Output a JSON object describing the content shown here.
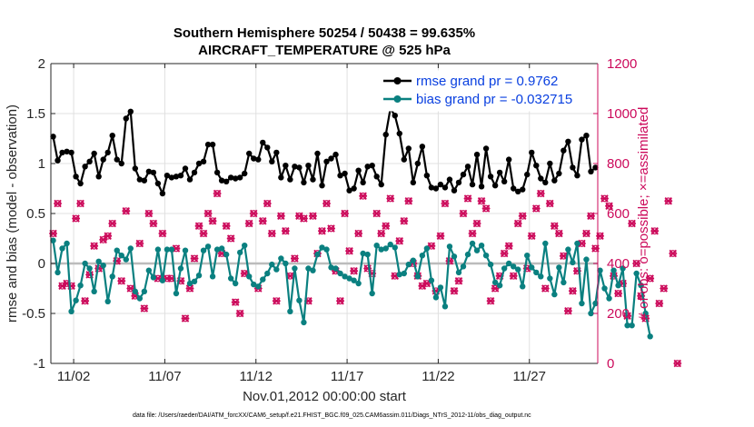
{
  "chart_data": {
    "type": "line",
    "title": "Southern Hemisphere 50254 / 50438 = 99.635%",
    "subtitle": "AIRCRAFT_TEMPERATURE @ 525 hPa",
    "xlabel": "Nov.01,2012 00:00:00 start",
    "ylabel": "rmse and bias (model - observation)",
    "ylabel_right": "# of obs: o=possible; ×=assimilated",
    "footnote": "data file: /Users/raeder/DAI/ATM_forcXX/CAM6_setup/f.e21.FHIST_BGC.f09_025.CAM6assim.011/Diags_NTrS_2012-11/obs_diag_output.nc",
    "xlim": [
      0.5,
      30.5
    ],
    "ylim": [
      -1,
      2
    ],
    "ylim_right": [
      0,
      1200
    ],
    "x_ticks": [
      1.75,
      6.75,
      11.75,
      16.75,
      21.75,
      26.75
    ],
    "x_tick_labels": [
      "11/02",
      "11/07",
      "11/12",
      "11/17",
      "11/22",
      "11/27"
    ],
    "y_ticks": [
      "-1",
      "-0.5",
      "0",
      "0.5",
      "1",
      "1.5",
      "2"
    ],
    "y_ticks_right": [
      "0",
      "200",
      "400",
      "600",
      "800",
      "1000",
      "1200"
    ],
    "grid": true,
    "legend_position": "top-right",
    "series": [
      {
        "name": "rmse grand pr = 0.9762",
        "color": "#000000",
        "marker": "filled-circle",
        "axis": "left",
        "x_start": 0.625,
        "x_step": 0.25,
        "values": [
          1.27,
          1.03,
          1.11,
          1.12,
          1.11,
          0.87,
          0.8,
          0.97,
          1.02,
          1.1,
          0.87,
          1.04,
          1.11,
          1.28,
          1.04,
          1.0,
          1.45,
          1.52,
          0.95,
          0.84,
          0.83,
          0.92,
          0.91,
          0.8,
          0.7,
          0.88,
          0.86,
          0.87,
          0.88,
          0.95,
          0.84,
          0.91,
          1.0,
          1.02,
          1.19,
          1.19,
          0.91,
          0.83,
          0.82,
          0.86,
          0.85,
          0.86,
          0.9,
          1.1,
          1.05,
          1.04,
          1.21,
          1.16,
          1.02,
          1.11,
          0.86,
          0.98,
          0.84,
          0.97,
          0.96,
          0.81,
          0.98,
          0.84,
          1.1,
          0.78,
          1.02,
          1.05,
          1.09,
          0.88,
          0.9,
          0.73,
          0.75,
          0.93,
          0.81,
          0.97,
          0.98,
          0.87,
          0.79,
          1.29,
          1.55,
          1.48,
          1.3,
          1.04,
          1.15,
          0.81,
          1.0,
          1.17,
          0.88,
          0.76,
          0.75,
          0.79,
          0.76,
          0.84,
          0.73,
          0.81,
          0.89,
          0.97,
          0.79,
          1.09,
          0.77,
          1.15,
          0.87,
          0.78,
          0.91,
          0.82,
          1.04,
          0.75,
          0.72,
          0.74,
          0.89,
          1.11,
          0.98,
          0.85,
          0.81,
          1.0,
          0.83,
          0.9,
          1.13,
          1.22,
          0.96,
          0.88,
          1.24,
          1.28,
          0.92,
          0.96
        ]
      },
      {
        "name": "bias grand pr = -0.032715",
        "color": "#0a8080",
        "marker": "filled-circle",
        "axis": "left",
        "x_start": 0.625,
        "x_step": 0.25,
        "values": [
          0.23,
          -0.09,
          0.15,
          0.2,
          -0.48,
          -0.37,
          -0.22,
          0.0,
          -0.05,
          -0.28,
          0.02,
          -0.02,
          -0.38,
          -0.13,
          0.13,
          0.08,
          0.04,
          0.15,
          -0.28,
          -0.35,
          -0.28,
          -0.07,
          -0.14,
          0.14,
          -0.17,
          0.14,
          0.14,
          -0.3,
          -0.05,
          0.13,
          -0.2,
          -0.18,
          -0.12,
          0.13,
          0.17,
          -0.13,
          0.14,
          0.15,
          0.09,
          -0.15,
          -0.2,
          0.11,
          0.18,
          -0.13,
          -0.21,
          -0.23,
          -0.16,
          -0.1,
          -0.01,
          -0.06,
          0.05,
          0.0,
          -0.48,
          -0.05,
          -0.37,
          -0.59,
          -0.05,
          -0.07,
          0.09,
          0.16,
          0.14,
          -0.04,
          -0.05,
          -0.1,
          -0.13,
          -0.15,
          -0.17,
          -0.2,
          0.1,
          0.09,
          -0.3,
          0.18,
          0.14,
          0.15,
          0.19,
          0.16,
          -0.11,
          -0.1,
          -0.01,
          0.03,
          -0.13,
          0.08,
          0.15,
          -0.17,
          -0.34,
          -0.24,
          -0.43,
          0.17,
          0.07,
          -0.09,
          -0.03,
          0.09,
          0.2,
          0.13,
          0.18,
          0.08,
          -0.01,
          -0.19,
          -0.22,
          -0.05,
          0.0,
          -0.03,
          -0.06,
          -0.23,
          0.08,
          -0.04,
          -0.09,
          -0.13,
          0.2,
          -0.15,
          -0.31,
          -0.04,
          -0.19,
          0.14,
          0.01,
          0.2,
          -0.4,
          0.04,
          -0.5,
          -0.4,
          -0.07,
          -0.25,
          -0.35,
          -0.07,
          -0.22,
          -0.05,
          -0.62,
          -0.62,
          -0.1,
          -0.22,
          -0.5,
          -0.73
        ]
      },
      {
        "name": "possible",
        "color": "#cc0a5b",
        "marker": "circle",
        "axis": "right",
        "x_start": 0.625,
        "x_step": 0.25,
        "values": [
          520,
          640,
          310,
          320,
          310,
          580,
          640,
          250,
          355,
          470,
          380,
          495,
          510,
          560,
          410,
          330,
          610,
          300,
          270,
          480,
          220,
          600,
          560,
          340,
          520,
          340,
          340,
          460,
          330,
          180,
          300,
          420,
          550,
          520,
          600,
          570,
          680,
          440,
          550,
          500,
          245,
          200,
          360,
          560,
          600,
          300,
          570,
          640,
          520,
          250,
          590,
          530,
          350,
          420,
          590,
          580,
          250,
          590,
          440,
          530,
          640,
          540,
          370,
          250,
          600,
          450,
          370,
          520,
          670,
          380,
          360,
          600,
          520,
          550,
          660,
          350,
          490,
          570,
          650,
          400,
          350,
          310,
          320,
          470,
          290,
          510,
          640,
          410,
          290,
          330,
          600,
          660,
          520,
          560,
          650,
          620,
          250,
          300,
          350,
          440,
          470,
          350,
          560,
          590,
          380,
          510,
          620,
          680,
          300,
          640,
          550,
          520,
          430,
          210,
          290,
          370,
          480,
          520,
          590,
          460,
          510,
          660,
          630,
          350,
          280,
          320,
          190,
          560,
          400,
          270,
          180,
          340,
          530,
          240,
          300,
          650,
          440,
          0
        ]
      },
      {
        "name": "assimilated",
        "color": "#cc0a5b",
        "marker": "x",
        "axis": "right",
        "x_start": 0.625,
        "x_step": 0.25,
        "values": [
          520,
          640,
          310,
          320,
          310,
          580,
          640,
          250,
          355,
          470,
          380,
          495,
          510,
          560,
          410,
          330,
          610,
          300,
          270,
          480,
          220,
          600,
          560,
          340,
          520,
          340,
          340,
          460,
          330,
          180,
          300,
          420,
          550,
          520,
          600,
          570,
          680,
          440,
          550,
          500,
          245,
          200,
          360,
          560,
          600,
          300,
          570,
          640,
          520,
          250,
          590,
          530,
          350,
          420,
          590,
          580,
          250,
          590,
          440,
          530,
          640,
          540,
          370,
          250,
          600,
          450,
          370,
          520,
          670,
          380,
          360,
          600,
          520,
          550,
          660,
          350,
          490,
          570,
          650,
          400,
          350,
          310,
          320,
          470,
          290,
          510,
          640,
          410,
          290,
          330,
          600,
          660,
          520,
          560,
          650,
          620,
          250,
          300,
          350,
          440,
          470,
          350,
          560,
          590,
          380,
          510,
          620,
          680,
          300,
          640,
          550,
          520,
          430,
          210,
          290,
          370,
          480,
          520,
          590,
          460,
          510,
          660,
          630,
          350,
          280,
          320,
          190,
          560,
          400,
          270,
          180,
          340,
          530,
          240,
          300,
          650,
          440,
          0
        ]
      }
    ]
  }
}
